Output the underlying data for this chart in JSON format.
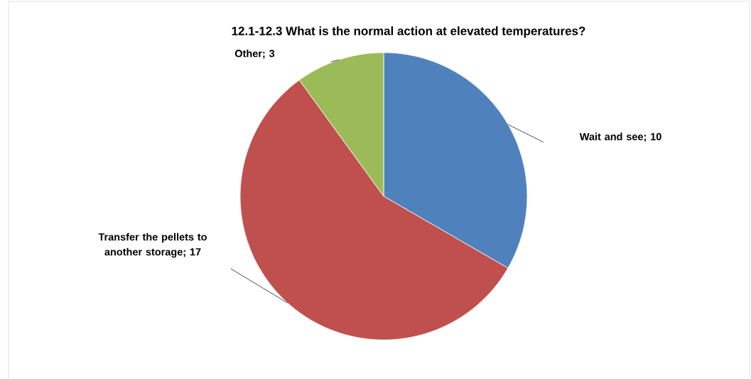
{
  "chart_data": {
    "type": "pie",
    "title": "12.1-12.3 What is the normal action at elevated temperatures?",
    "categories": [
      "Wait and see",
      "Transfer the pellets to another storage",
      "Other"
    ],
    "values": [
      10,
      17,
      3
    ],
    "value_labels": [
      "; 10",
      "; 17",
      "; 3"
    ],
    "colors": [
      "#4f81bd",
      "#c0504d",
      "#9bbb59"
    ]
  }
}
